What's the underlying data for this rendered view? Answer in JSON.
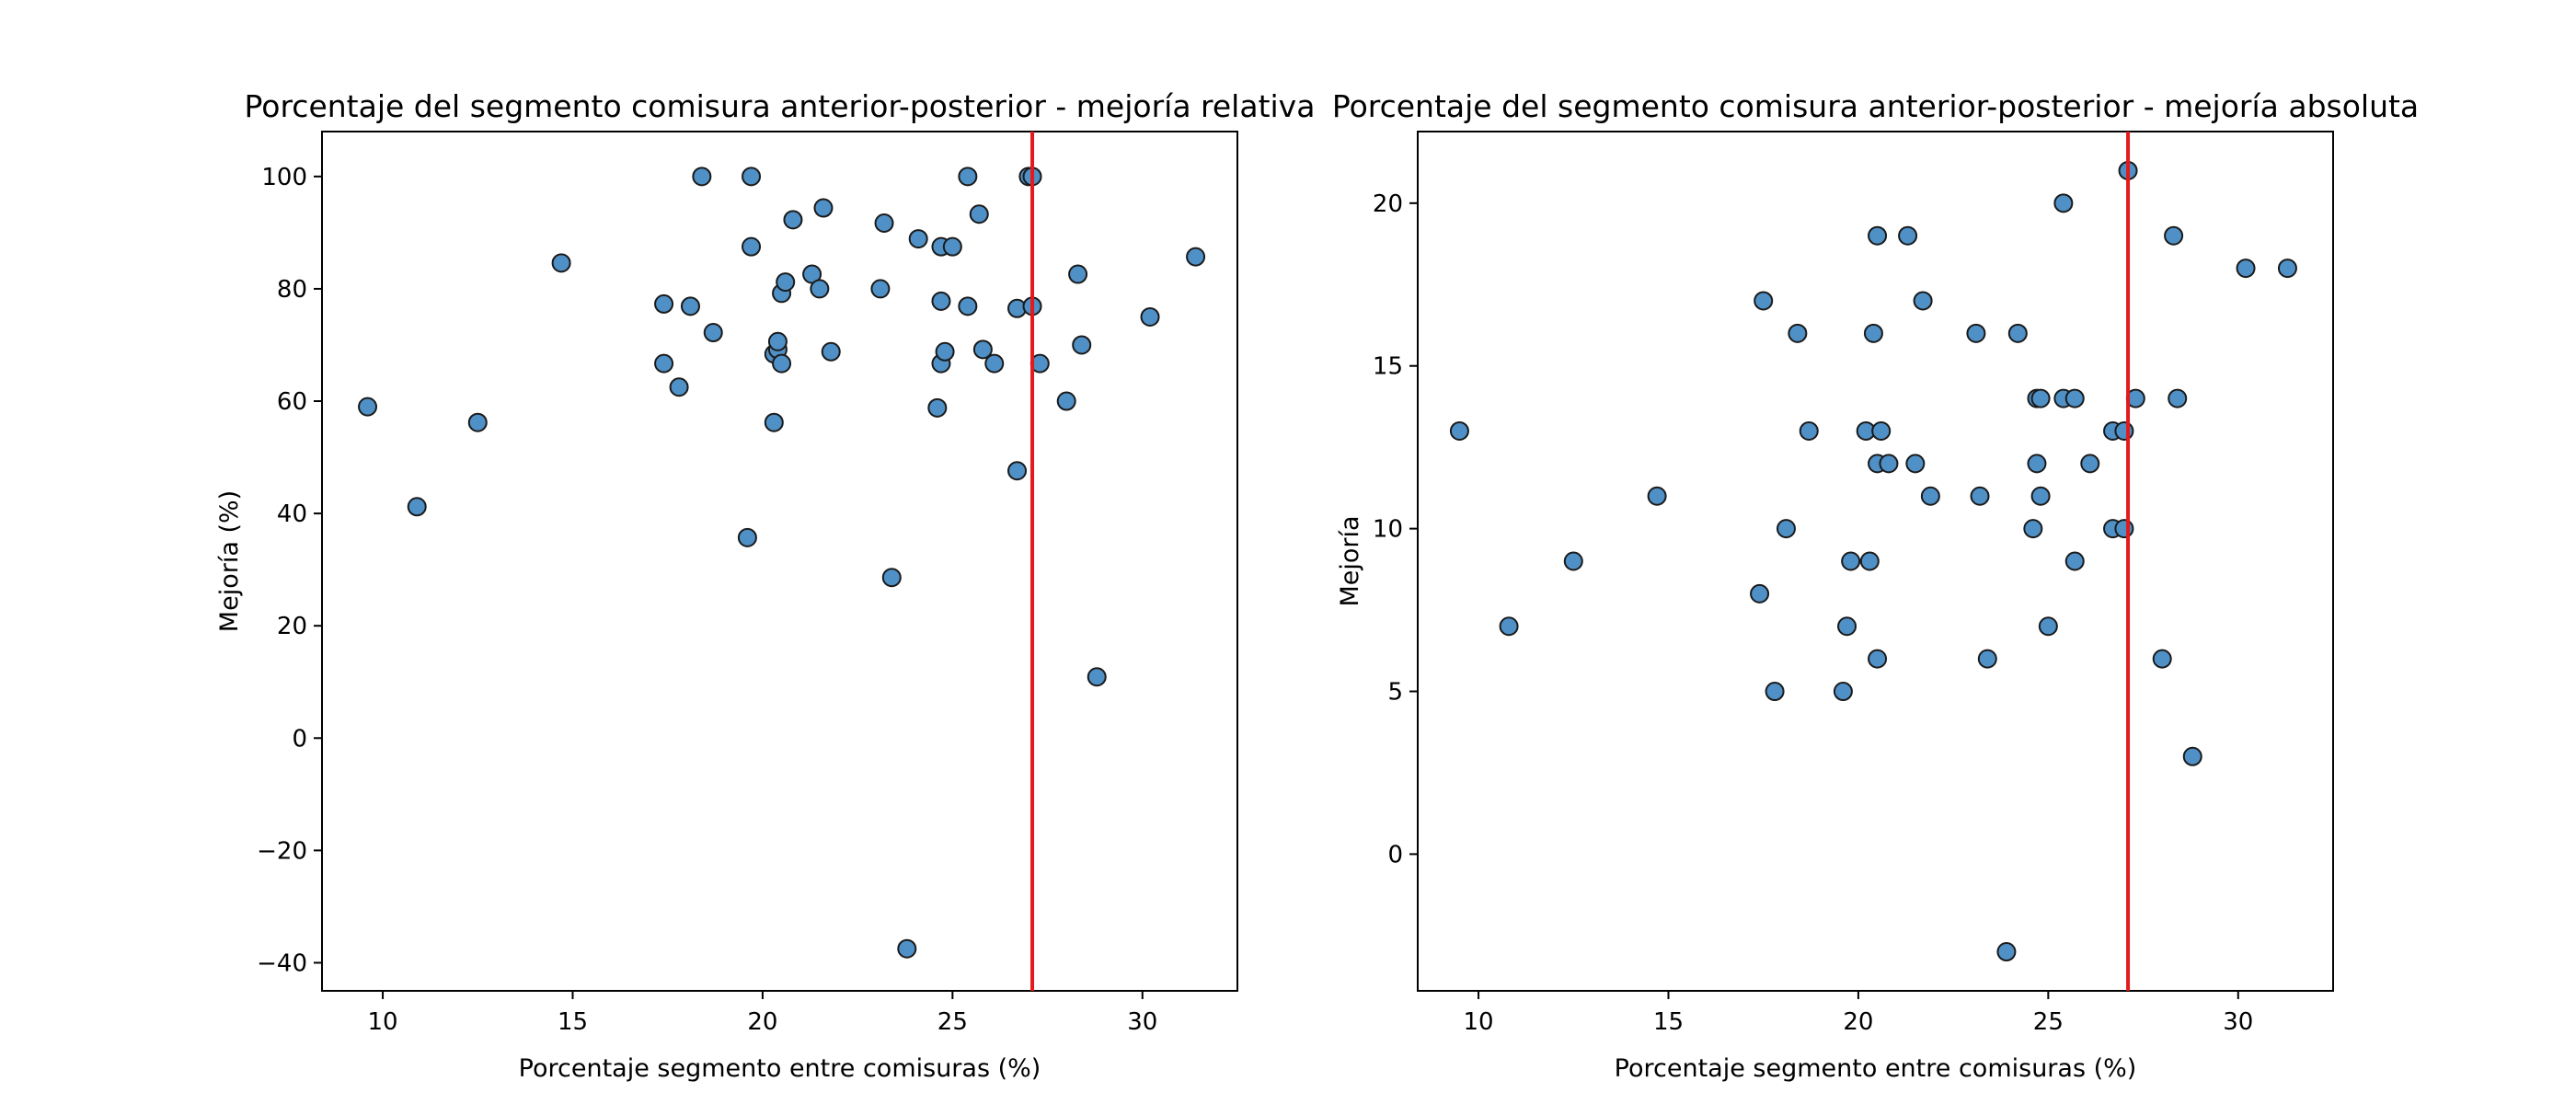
{
  "chart_data": [
    {
      "type": "scatter",
      "title": "Porcentaje del segmento comisura anterior-posterior - mejoría relativa",
      "xlabel": "Porcentaje segmento entre comisuras (%)",
      "ylabel": "Mejoría (%)",
      "xlim": [
        8.4,
        32.5
      ],
      "ylim": [
        -45,
        108
      ],
      "xticks": [
        10,
        15,
        20,
        25,
        30
      ],
      "yticks": [
        -40,
        -20,
        0,
        20,
        40,
        60,
        80,
        100
      ],
      "grid": false,
      "reference_line": {
        "orientation": "vertical",
        "x": 27.1,
        "color": "#e31a1c"
      },
      "marker_color": "#4f90c6",
      "series": [
        {
          "points": [
            [
              9.6,
              59
            ],
            [
              10.9,
              41.2
            ],
            [
              12.5,
              56.2
            ],
            [
              14.7,
              84.6
            ],
            [
              17.4,
              66.7
            ],
            [
              17.4,
              77.3
            ],
            [
              17.8,
              62.5
            ],
            [
              18.1,
              76.9
            ],
            [
              18.4,
              100
            ],
            [
              18.7,
              72.2
            ],
            [
              19.6,
              35.7
            ],
            [
              19.7,
              100
            ],
            [
              19.7,
              87.5
            ],
            [
              20.3,
              56.2
            ],
            [
              20.3,
              68.4
            ],
            [
              20.4,
              69.2
            ],
            [
              20.4,
              70.6
            ],
            [
              20.5,
              79.2
            ],
            [
              20.5,
              66.7
            ],
            [
              20.6,
              81.2
            ],
            [
              20.8,
              92.3
            ],
            [
              21.3,
              82.6
            ],
            [
              21.5,
              80
            ],
            [
              21.6,
              94.4
            ],
            [
              21.8,
              68.8
            ],
            [
              23.1,
              80
            ],
            [
              23.2,
              91.7
            ],
            [
              23.4,
              28.6
            ],
            [
              23.8,
              -37.5
            ],
            [
              24.1,
              88.9
            ],
            [
              24.6,
              58.8
            ],
            [
              24.7,
              87.5
            ],
            [
              24.7,
              77.8
            ],
            [
              24.7,
              66.7
            ],
            [
              24.8,
              68.8
            ],
            [
              25,
              87.5
            ],
            [
              25.4,
              100
            ],
            [
              25.4,
              76.9
            ],
            [
              25.7,
              93.3
            ],
            [
              25.8,
              69.2
            ],
            [
              26.1,
              66.7
            ],
            [
              26.7,
              76.5
            ],
            [
              26.7,
              47.6
            ],
            [
              27,
              100
            ],
            [
              27.1,
              100
            ],
            [
              27.1,
              76.9
            ],
            [
              27.3,
              66.7
            ],
            [
              28,
              60
            ],
            [
              28.3,
              82.6
            ],
            [
              28.4,
              70
            ],
            [
              28.8,
              10.9
            ],
            [
              30.2,
              75
            ],
            [
              31.4,
              85.7
            ]
          ]
        }
      ]
    },
    {
      "type": "scatter",
      "title": "Porcentaje del segmento comisura anterior-posterior - mejoría absoluta",
      "xlabel": "Porcentaje segmento entre comisuras (%)",
      "ylabel": "Mejoría",
      "xlim": [
        8.4,
        32.5
      ],
      "ylim": [
        -4.2,
        22.2
      ],
      "xticks": [
        10,
        15,
        20,
        25,
        30
      ],
      "yticks": [
        0,
        5,
        10,
        15,
        20
      ],
      "grid": false,
      "reference_line": {
        "orientation": "vertical",
        "x": 27.1,
        "color": "#e31a1c"
      },
      "marker_color": "#4f90c6",
      "series": [
        {
          "points": [
            [
              9.5,
              13
            ],
            [
              10.8,
              7
            ],
            [
              12.5,
              9
            ],
            [
              14.7,
              11
            ],
            [
              17.4,
              8
            ],
            [
              17.5,
              17
            ],
            [
              17.8,
              5
            ],
            [
              18.1,
              10
            ],
            [
              18.4,
              16
            ],
            [
              18.7,
              13
            ],
            [
              19.6,
              5
            ],
            [
              19.7,
              7
            ],
            [
              19.8,
              9
            ],
            [
              20.2,
              13
            ],
            [
              20.3,
              9
            ],
            [
              20.4,
              16
            ],
            [
              20.5,
              19
            ],
            [
              20.5,
              12
            ],
            [
              20.5,
              6
            ],
            [
              20.6,
              13
            ],
            [
              20.8,
              12
            ],
            [
              21.3,
              19
            ],
            [
              21.5,
              12
            ],
            [
              21.7,
              17
            ],
            [
              21.9,
              11
            ],
            [
              23.1,
              16
            ],
            [
              23.2,
              11
            ],
            [
              23.4,
              6
            ],
            [
              23.9,
              -3
            ],
            [
              24.2,
              16
            ],
            [
              24.6,
              10
            ],
            [
              24.7,
              14
            ],
            [
              24.7,
              12
            ],
            [
              24.8,
              14
            ],
            [
              24.8,
              11
            ],
            [
              25,
              7
            ],
            [
              25.4,
              14
            ],
            [
              25.4,
              20
            ],
            [
              25.7,
              14
            ],
            [
              25.7,
              9
            ],
            [
              26.1,
              12
            ],
            [
              26.7,
              13
            ],
            [
              26.7,
              10
            ],
            [
              27,
              13
            ],
            [
              27,
              10
            ],
            [
              27.1,
              21
            ],
            [
              27.3,
              14
            ],
            [
              28,
              6
            ],
            [
              28.3,
              19
            ],
            [
              28.4,
              14
            ],
            [
              28.8,
              3
            ],
            [
              30.2,
              18
            ],
            [
              31.3,
              18
            ]
          ]
        }
      ]
    }
  ]
}
